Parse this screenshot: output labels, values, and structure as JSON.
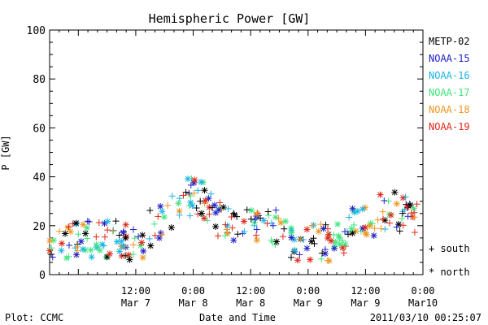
{
  "chart_data": {
    "type": "scatter",
    "title": "Hemispheric Power [GW]",
    "ylabel": "P [GW]",
    "xlabel": "Date and Time",
    "ylim": [
      0,
      100
    ],
    "xlim": [
      "2011-03-06T18:00",
      "2011-03-10T00:00"
    ],
    "yticks": [
      "0",
      "20",
      "40",
      "60",
      "80",
      "100"
    ],
    "xticks": [
      {
        "t": "2011-03-07T12:00",
        "time": "12:00",
        "date": "Mar 7"
      },
      {
        "t": "2011-03-08T00:00",
        "time": "0:00",
        "date": "Mar 8"
      },
      {
        "t": "2011-03-08T12:00",
        "time": "12:00",
        "date": "Mar 8"
      },
      {
        "t": "2011-03-09T00:00",
        "time": "0:00",
        "date": "Mar 9"
      },
      {
        "t": "2011-03-09T12:00",
        "time": "12:00",
        "date": "Mar 9"
      },
      {
        "t": "2011-03-10T00:00",
        "time": "0:00",
        "date": "Mar10"
      }
    ],
    "legend_position": "right",
    "marker_legend": [
      {
        "symbol": "+",
        "label": "south"
      },
      {
        "symbol": "*",
        "label": "north"
      }
    ],
    "series": [
      {
        "name": "METP-02",
        "color": "#000000"
      },
      {
        "name": "NOAA-15",
        "color": "#2020c8"
      },
      {
        "name": "NOAA-16",
        "color": "#1ab4e6"
      },
      {
        "name": "NOAA-17",
        "color": "#3ce67a"
      },
      {
        "name": "NOAA-18",
        "color": "#f0961e"
      },
      {
        "name": "NOAA-19",
        "color": "#e02818"
      }
    ],
    "grid": false
  },
  "footer": {
    "left": "Plot: CCMC",
    "timestamp": "2011/03/10 00:25:07"
  }
}
